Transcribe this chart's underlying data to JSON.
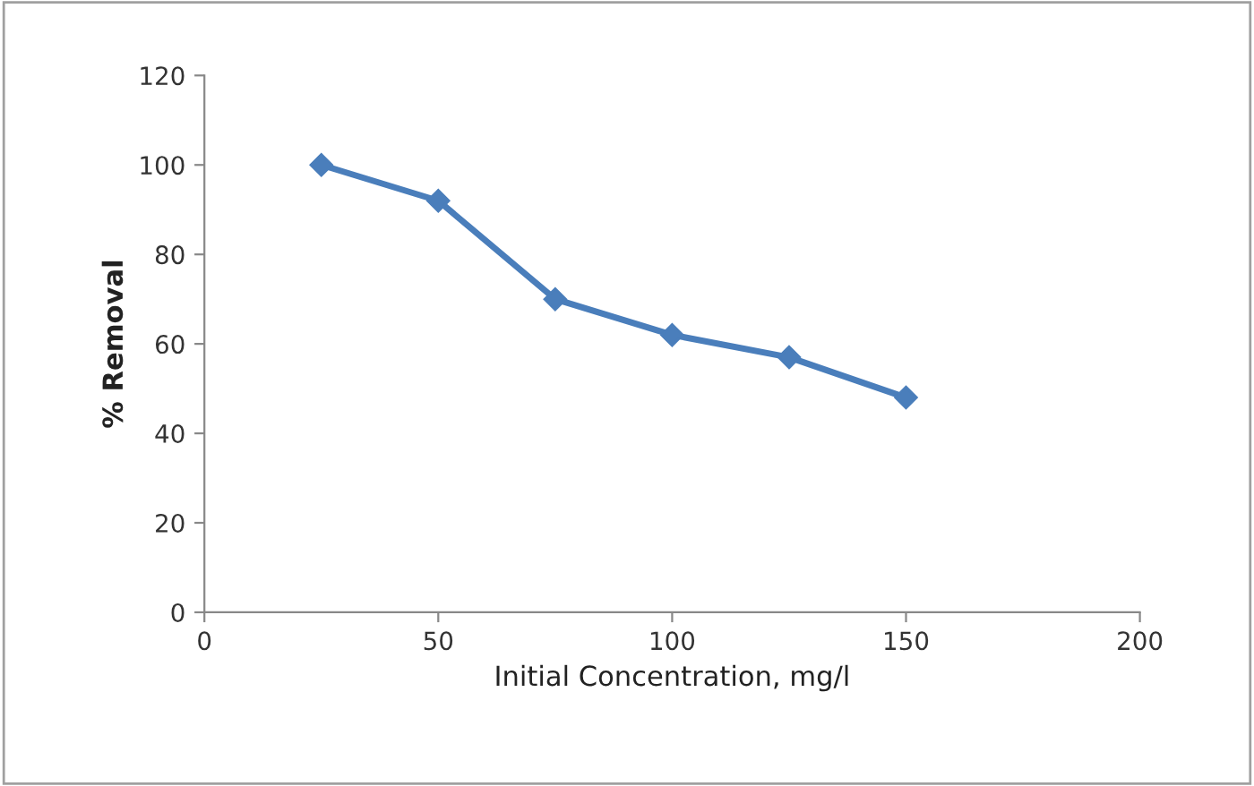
{
  "chart_data": {
    "type": "line",
    "xlabel": "Initial Concentration, mg/l",
    "ylabel": "% Removal",
    "x": [
      25,
      50,
      75,
      100,
      125,
      150
    ],
    "series": [
      {
        "color": "#4a7ebb",
        "values": [
          100,
          92,
          70,
          62,
          57,
          48
        ]
      }
    ],
    "xlim": [
      0,
      200
    ],
    "xticks": [
      0,
      50,
      100,
      150,
      200
    ],
    "ylim": [
      0,
      120
    ],
    "yticks": [
      0,
      20,
      40,
      60,
      80,
      100,
      120
    ],
    "grid": false,
    "legend": false,
    "marker": "diamond",
    "line_style": "solid"
  }
}
